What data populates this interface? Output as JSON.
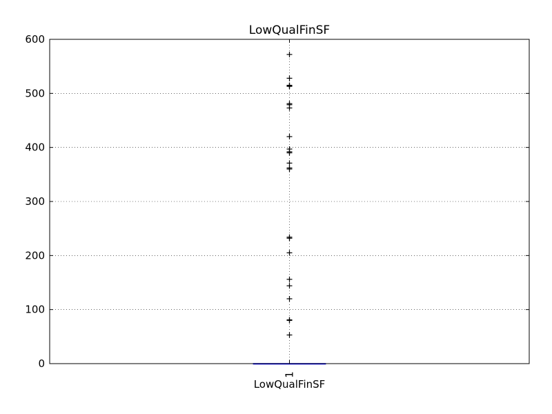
{
  "chart_data": {
    "type": "box",
    "title": "LowQualFinSF",
    "xlabel": "LowQualFinSF",
    "ylabel": "",
    "categories": [
      "1"
    ],
    "ylim": [
      0,
      600
    ],
    "yticks": [
      0,
      100,
      200,
      300,
      400,
      500,
      600
    ],
    "grid": true,
    "series": [
      {
        "category": "1",
        "median": 0,
        "q1": 0,
        "q3": 0,
        "whisker_low": 0,
        "whisker_high": 0,
        "outliers": [
          53,
          80,
          81,
          120,
          144,
          156,
          205,
          232,
          234,
          360,
          362,
          371,
          390,
          392,
          397,
          420,
          473,
          479,
          481,
          513,
          514,
          515,
          528,
          572
        ]
      }
    ],
    "colors": {
      "box": "#0000ff",
      "median": "#ff0000",
      "outlier": "#000000",
      "grid": "#000000",
      "axes": "#000000"
    }
  }
}
